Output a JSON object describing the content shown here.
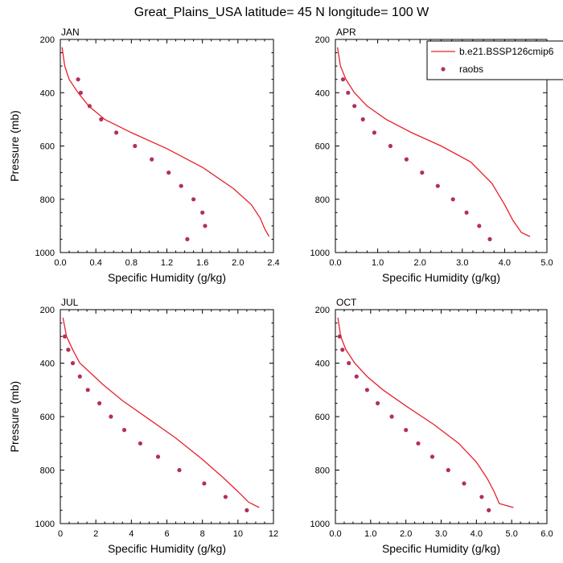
{
  "title": "Great_Plains_USA  latitude= 45 N longitude= 100 W",
  "legend": {
    "model_label": "b.e21.BSSP126cmip6",
    "obs_label": "raobs",
    "placement": "top-right of APR panel"
  },
  "colors": {
    "model": "#e8202a",
    "obs": "#b3305a",
    "axis": "#000000"
  },
  "chart_data": [
    {
      "type": "line",
      "panel": "JAN",
      "xlabel": "Specific Humidity (g/kg)",
      "ylabel": "Pressure (mb)",
      "xlim": [
        0,
        2.4
      ],
      "xticks": [
        "0.0",
        "0.4",
        "0.8",
        "1.2",
        "1.6",
        "2.0",
        "2.4"
      ],
      "ylim": [
        200,
        1000
      ],
      "yticks": [
        "200",
        "400",
        "600",
        "800",
        "1000"
      ],
      "series": [
        {
          "name": "b.e21.BSSP126cmip6",
          "kind": "line",
          "x": [
            0.02,
            0.05,
            0.1,
            0.2,
            0.32,
            0.5,
            0.8,
            1.2,
            1.6,
            1.95,
            2.15,
            2.25,
            2.3,
            2.35
          ],
          "y": [
            230,
            300,
            350,
            400,
            450,
            500,
            550,
            610,
            680,
            760,
            820,
            870,
            910,
            940
          ]
        },
        {
          "name": "raobs",
          "kind": "scatter",
          "x": [
            0.2,
            0.23,
            0.33,
            0.46,
            0.63,
            0.84,
            1.03,
            1.22,
            1.36,
            1.5,
            1.6,
            1.63,
            1.43
          ],
          "y": [
            350,
            400,
            450,
            500,
            550,
            600,
            650,
            700,
            750,
            800,
            850,
            900,
            950
          ]
        }
      ]
    },
    {
      "type": "line",
      "panel": "APR",
      "xlabel": "Specific Humidity (g/kg)",
      "ylabel": "",
      "xlim": [
        0,
        5.0
      ],
      "xticks": [
        "0.0",
        "1.0",
        "2.0",
        "3.0",
        "4.0",
        "5.0"
      ],
      "ylim": [
        200,
        1000
      ],
      "yticks": [
        "200",
        "400",
        "600",
        "800",
        "1000"
      ],
      "series": [
        {
          "name": "b.e21.BSSP126cmip6",
          "kind": "line",
          "x": [
            0.05,
            0.12,
            0.25,
            0.45,
            0.75,
            1.2,
            1.8,
            2.5,
            3.2,
            3.7,
            4.0,
            4.2,
            4.4,
            4.6
          ],
          "y": [
            230,
            300,
            350,
            400,
            450,
            500,
            550,
            600,
            660,
            740,
            820,
            880,
            925,
            940
          ]
        },
        {
          "name": "raobs",
          "kind": "scatter",
          "x": [
            0.18,
            0.3,
            0.45,
            0.65,
            0.92,
            1.3,
            1.68,
            2.05,
            2.42,
            2.78,
            3.1,
            3.4,
            3.65
          ],
          "y": [
            350,
            400,
            450,
            500,
            550,
            600,
            650,
            700,
            750,
            800,
            850,
            900,
            950
          ]
        }
      ]
    },
    {
      "type": "line",
      "panel": "JUL",
      "xlabel": "Specific Humidity (g/kg)",
      "ylabel": "Pressure (mb)",
      "xlim": [
        0,
        12
      ],
      "xticks": [
        "0",
        "2",
        "4",
        "6",
        "8",
        "10",
        "12"
      ],
      "ylim": [
        200,
        1000
      ],
      "yticks": [
        "200",
        "400",
        "600",
        "800",
        "1000"
      ],
      "series": [
        {
          "name": "b.e21.BSSP126cmip6",
          "kind": "line",
          "x": [
            0.15,
            0.35,
            0.7,
            1.1,
            1.6,
            2.4,
            3.5,
            5.0,
            6.5,
            8.0,
            9.2,
            10.0,
            10.6,
            11.2
          ],
          "y": [
            230,
            300,
            350,
            400,
            430,
            480,
            540,
            610,
            680,
            760,
            830,
            880,
            920,
            940
          ]
        },
        {
          "name": "raobs",
          "kind": "scatter",
          "x": [
            0.25,
            0.45,
            0.7,
            1.1,
            1.55,
            2.2,
            2.85,
            3.6,
            4.5,
            5.5,
            6.7,
            8.1,
            9.3,
            10.5
          ],
          "y": [
            300,
            350,
            400,
            450,
            500,
            550,
            600,
            650,
            700,
            750,
            800,
            850,
            900,
            950
          ]
        }
      ]
    },
    {
      "type": "line",
      "panel": "OCT",
      "xlabel": "Specific Humidity (g/kg)",
      "ylabel": "",
      "xlim": [
        0,
        6.0
      ],
      "xticks": [
        "0.0",
        "1.0",
        "2.0",
        "3.0",
        "4.0",
        "5.0",
        "6.0"
      ],
      "ylim": [
        200,
        1000
      ],
      "yticks": [
        "200",
        "400",
        "600",
        "800",
        "1000"
      ],
      "series": [
        {
          "name": "b.e21.BSSP126cmip6",
          "kind": "line",
          "x": [
            0.07,
            0.15,
            0.3,
            0.55,
            0.9,
            1.35,
            2.0,
            2.8,
            3.5,
            4.0,
            4.3,
            4.5,
            4.65,
            5.05
          ],
          "y": [
            230,
            300,
            350,
            400,
            450,
            500,
            560,
            630,
            700,
            770,
            830,
            880,
            925,
            940
          ]
        },
        {
          "name": "raobs",
          "kind": "scatter",
          "x": [
            0.12,
            0.2,
            0.38,
            0.6,
            0.9,
            1.2,
            1.6,
            2.0,
            2.35,
            2.75,
            3.2,
            3.65,
            4.15,
            4.35
          ],
          "y": [
            300,
            350,
            400,
            450,
            500,
            550,
            600,
            650,
            700,
            750,
            800,
            850,
            900,
            950
          ]
        }
      ]
    }
  ]
}
